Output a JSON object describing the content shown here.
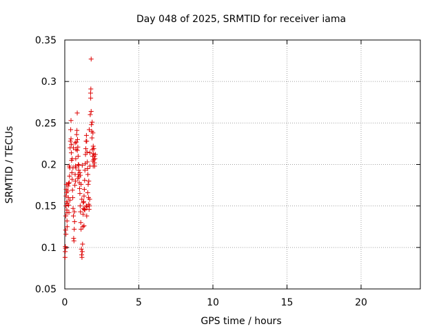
{
  "chart_data": {
    "type": "scatter",
    "title": "Day 048 of 2025, SRMTID for receiver iama",
    "xlabel": "GPS time / hours",
    "ylabel": "SRMTID / TECUs",
    "xlim": [
      0,
      24
    ],
    "ylim": [
      0.05,
      0.35
    ],
    "xticks": [
      "0",
      "5",
      "10",
      "15",
      "20"
    ],
    "yticks": [
      "0.05",
      "0.1",
      "0.15",
      "0.2",
      "0.25",
      "0.3",
      "0.35"
    ],
    "grid": true,
    "marker": "+",
    "color": "#dd0000",
    "series": [
      {
        "points": [
          [
            0.02,
            0.088
          ],
          [
            0.03,
            0.095
          ],
          [
            0.04,
            0.101
          ],
          [
            0.05,
            0.099
          ],
          [
            0.06,
            0.121
          ],
          [
            0.07,
            0.138
          ],
          [
            0.08,
            0.15
          ],
          [
            0.09,
            0.162
          ],
          [
            0.1,
            0.17
          ],
          [
            0.11,
            0.176
          ],
          [
            0.12,
            0.166
          ],
          [
            0.13,
            0.155
          ],
          [
            0.14,
            0.145
          ],
          [
            0.15,
            0.132
          ],
          [
            0.16,
            0.125
          ],
          [
            0.18,
            0.153
          ],
          [
            0.2,
            0.168
          ],
          [
            0.22,
            0.174
          ],
          [
            0.24,
            0.16
          ],
          [
            0.26,
            0.151
          ],
          [
            0.28,
            0.142
          ],
          [
            0.3,
            0.178
          ],
          [
            0.32,
            0.186
          ],
          [
            0.34,
            0.196
          ],
          [
            0.36,
            0.22
          ],
          [
            0.38,
            0.228
          ],
          [
            0.4,
            0.242
          ],
          [
            0.42,
            0.253
          ],
          [
            0.44,
            0.214
          ],
          [
            0.46,
            0.205
          ],
          [
            0.48,
            0.19
          ],
          [
            0.5,
            0.182
          ],
          [
            0.52,
            0.169
          ],
          [
            0.54,
            0.16
          ],
          [
            0.56,
            0.147
          ],
          [
            0.58,
            0.138
          ],
          [
            0.6,
            0.111
          ],
          [
            0.62,
            0.108
          ],
          [
            0.64,
            0.122
          ],
          [
            0.66,
            0.131
          ],
          [
            0.68,
            0.175
          ],
          [
            0.7,
            0.188
          ],
          [
            0.72,
            0.198
          ],
          [
            0.74,
            0.207
          ],
          [
            0.76,
            0.218
          ],
          [
            0.78,
            0.227
          ],
          [
            0.8,
            0.236
          ],
          [
            0.82,
            0.241
          ],
          [
            0.84,
            0.262
          ],
          [
            0.86,
            0.23
          ],
          [
            0.88,
            0.221
          ],
          [
            0.9,
            0.21
          ],
          [
            0.92,
            0.2
          ],
          [
            0.94,
            0.193
          ],
          [
            0.96,
            0.185
          ],
          [
            0.98,
            0.178
          ],
          [
            1.0,
            0.171
          ],
          [
            1.02,
            0.165
          ],
          [
            1.04,
            0.15
          ],
          [
            1.06,
            0.143
          ],
          [
            1.08,
            0.13
          ],
          [
            1.1,
            0.122
          ],
          [
            1.12,
            0.098
          ],
          [
            1.14,
            0.091
          ],
          [
            1.16,
            0.088
          ],
          [
            1.18,
            0.095
          ],
          [
            1.2,
            0.104
          ],
          [
            1.22,
            0.125
          ],
          [
            1.24,
            0.14
          ],
          [
            1.26,
            0.147
          ],
          [
            1.28,
            0.155
          ],
          [
            1.3,
            0.162
          ],
          [
            1.32,
            0.17
          ],
          [
            1.34,
            0.181
          ],
          [
            1.36,
            0.193
          ],
          [
            1.38,
            0.201
          ],
          [
            1.4,
            0.212
          ],
          [
            1.42,
            0.219
          ],
          [
            1.44,
            0.228
          ],
          [
            1.46,
            0.235
          ],
          [
            1.48,
            0.228
          ],
          [
            1.5,
            0.215
          ],
          [
            1.52,
            0.203
          ],
          [
            1.54,
            0.195
          ],
          [
            1.56,
            0.188
          ],
          [
            1.58,
            0.176
          ],
          [
            1.6,
            0.16
          ],
          [
            1.62,
            0.152
          ],
          [
            1.64,
            0.146
          ],
          [
            1.66,
            0.15
          ],
          [
            1.68,
            0.158
          ],
          [
            1.7,
            0.214
          ],
          [
            1.72,
            0.26
          ],
          [
            1.74,
            0.286
          ],
          [
            1.76,
            0.291
          ],
          [
            1.78,
            0.327
          ],
          [
            1.8,
            0.248
          ],
          [
            1.82,
            0.24
          ],
          [
            1.84,
            0.232
          ],
          [
            1.86,
            0.218
          ],
          [
            1.88,
            0.21
          ],
          [
            1.9,
            0.204
          ],
          [
            1.92,
            0.198
          ],
          [
            1.94,
            0.213
          ],
          [
            1.96,
            0.219
          ],
          [
            1.98,
            0.21
          ],
          [
            2.0,
            0.202
          ],
          [
            2.02,
            0.198
          ],
          [
            2.04,
            0.207
          ],
          [
            2.06,
            0.212
          ],
          [
            0.25,
            0.177
          ],
          [
            0.35,
            0.157
          ],
          [
            0.45,
            0.224
          ],
          [
            0.55,
            0.196
          ],
          [
            0.65,
            0.143
          ],
          [
            0.75,
            0.196
          ],
          [
            0.85,
            0.217
          ],
          [
            0.95,
            0.199
          ],
          [
            1.05,
            0.187
          ],
          [
            1.15,
            0.158
          ],
          [
            1.25,
            0.154
          ],
          [
            1.35,
            0.145
          ],
          [
            1.45,
            0.15
          ],
          [
            1.55,
            0.166
          ],
          [
            1.65,
            0.242
          ],
          [
            1.75,
            0.28
          ],
          [
            1.85,
            0.251
          ],
          [
            1.95,
            0.206
          ],
          [
            0.42,
            0.231
          ],
          [
            0.58,
            0.22
          ],
          [
            0.72,
            0.18
          ],
          [
            0.88,
            0.183
          ],
          [
            1.02,
            0.19
          ],
          [
            1.18,
            0.199
          ],
          [
            1.32,
            0.146
          ],
          [
            1.48,
            0.138
          ],
          [
            1.62,
            0.18
          ],
          [
            1.78,
            0.264
          ],
          [
            1.92,
            0.222
          ],
          [
            0.15,
            0.142
          ],
          [
            0.3,
            0.198
          ],
          [
            0.5,
            0.207
          ],
          [
            0.7,
            0.226
          ],
          [
            0.9,
            0.188
          ],
          [
            1.1,
            0.176
          ],
          [
            1.3,
            0.126
          ],
          [
            1.5,
            0.149
          ],
          [
            1.7,
            0.198
          ],
          [
            1.9,
            0.238
          ],
          [
            0.08,
            0.116
          ]
        ]
      }
    ]
  }
}
